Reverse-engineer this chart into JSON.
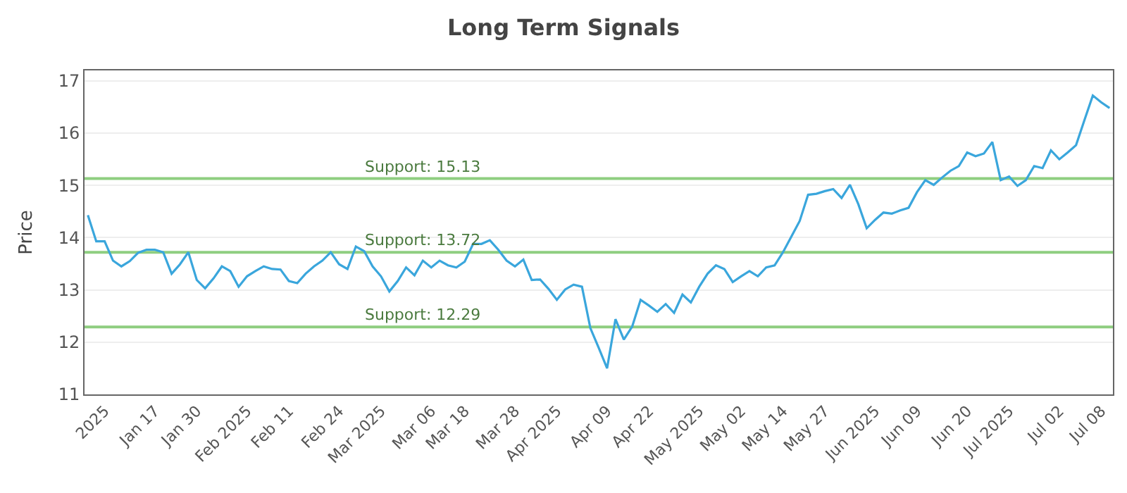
{
  "chart_data": {
    "type": "line",
    "title": "Long Term Signals",
    "ylabel": "Price",
    "ylim": [
      11,
      17.2
    ],
    "yticks": [
      11,
      12,
      13,
      14,
      15,
      16,
      17
    ],
    "categories": [
      null,
      null,
      "2025",
      null,
      null,
      null,
      null,
      null,
      "Jan 17",
      null,
      null,
      null,
      null,
      "Jan 30",
      null,
      null,
      null,
      null,
      null,
      "Feb 2025",
      null,
      null,
      null,
      null,
      "Feb 11",
      null,
      null,
      null,
      null,
      null,
      "Feb 24",
      null,
      null,
      null,
      null,
      "Mar 2025",
      null,
      null,
      null,
      null,
      null,
      "Mar 06",
      null,
      null,
      null,
      "Mar 18",
      null,
      null,
      null,
      null,
      null,
      "Mar 28",
      null,
      null,
      null,
      null,
      "Apr 2025",
      null,
      null,
      null,
      null,
      null,
      "Apr 09",
      null,
      null,
      null,
      null,
      "Apr 22",
      null,
      null,
      null,
      null,
      null,
      "May 2025",
      null,
      null,
      null,
      null,
      "May 02",
      null,
      null,
      null,
      null,
      "May 14",
      null,
      null,
      null,
      null,
      "May 27",
      null,
      null,
      null,
      null,
      null,
      "Jun 2025",
      null,
      null,
      null,
      null,
      "Jun 09",
      null,
      null,
      null,
      null,
      null,
      "Jun 20",
      null,
      null,
      null,
      null,
      "Jul 2025",
      null,
      null,
      null,
      null,
      null,
      "Jul 02",
      null,
      null,
      null,
      null,
      "Jul 08",
      null
    ],
    "grid": "y",
    "marker": "none",
    "line_style": "solid",
    "series": [
      {
        "color": "#3aa6dc",
        "values": [
          14.43,
          13.93,
          13.93,
          13.56,
          13.45,
          13.55,
          13.71,
          13.77,
          13.77,
          13.72,
          13.31,
          13.49,
          13.72,
          13.19,
          13.03,
          13.22,
          13.45,
          13.36,
          13.06,
          13.26,
          13.36,
          13.45,
          13.4,
          13.39,
          13.17,
          13.13,
          13.31,
          13.45,
          13.56,
          13.72,
          13.49,
          13.4,
          13.83,
          13.74,
          13.45,
          13.26,
          12.97,
          13.17,
          13.43,
          13.28,
          13.56,
          13.43,
          13.56,
          13.47,
          13.43,
          13.54,
          13.88,
          13.88,
          13.95,
          13.77,
          13.56,
          13.45,
          13.58,
          13.19,
          13.2,
          13.02,
          12.81,
          13.01,
          13.1,
          13.06,
          12.27,
          11.89,
          11.5,
          12.44,
          12.05,
          12.3,
          12.81,
          12.7,
          12.58,
          12.73,
          12.56,
          12.91,
          12.76,
          13.06,
          13.31,
          13.47,
          13.4,
          13.15,
          13.26,
          13.36,
          13.26,
          13.43,
          13.47,
          13.72,
          14.02,
          14.32,
          14.82,
          14.84,
          14.89,
          14.93,
          14.76,
          15.01,
          14.64,
          14.18,
          14.34,
          14.48,
          14.46,
          14.52,
          14.57,
          14.87,
          15.1,
          15.01,
          15.15,
          15.28,
          15.37,
          15.63,
          15.56,
          15.61,
          15.83,
          15.1,
          15.17,
          14.99,
          15.1,
          15.37,
          15.33,
          15.67,
          15.5,
          15.63,
          15.77,
          16.25,
          16.72,
          16.59,
          16.48
        ]
      }
    ],
    "ref_lines": [
      {
        "axis": "y",
        "value": 15.13,
        "label": "Support: 15.13",
        "color": "#8fce80"
      },
      {
        "axis": "y",
        "value": 13.72,
        "label": "Support: 13.72",
        "color": "#8fce80"
      },
      {
        "axis": "y",
        "value": 12.29,
        "label": "Support: 12.29",
        "color": "#8fce80"
      }
    ]
  }
}
